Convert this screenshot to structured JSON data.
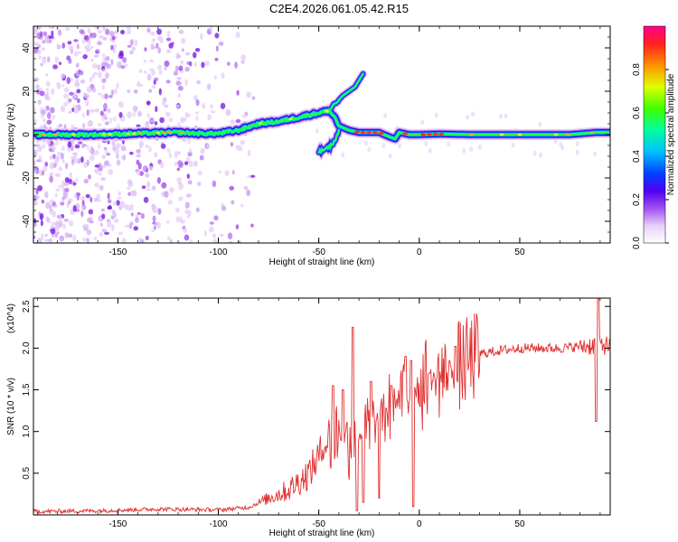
{
  "title": "C2E4.2026.061.05.42.R15",
  "chart_data": [
    {
      "type": "heatmap",
      "xlabel": "Height of straight line (km)",
      "ylabel": "Frequency (Hz)",
      "xlim": [
        -192,
        95
      ],
      "ylim": [
        -50,
        50
      ],
      "xticks": [
        -150,
        -100,
        -50,
        0,
        50
      ],
      "yticks": [
        -40,
        -20,
        0,
        20,
        40
      ],
      "colorbar": {
        "label": "Normalized spectral amplitude",
        "range": [
          0,
          1
        ],
        "ticks": [
          0.0,
          0.2,
          0.4,
          0.6,
          0.8
        ]
      },
      "ridge": [
        [
          -192,
          0
        ],
        [
          -180,
          0
        ],
        [
          -160,
          0
        ],
        [
          -140,
          0.5
        ],
        [
          -120,
          1
        ],
        [
          -110,
          0.5
        ],
        [
          -100,
          0.5
        ],
        [
          -90,
          2
        ],
        [
          -80,
          5
        ],
        [
          -70,
          6
        ],
        [
          -60,
          8
        ],
        [
          -50,
          10
        ],
        [
          -45,
          11
        ],
        [
          -42,
          8
        ],
        [
          -40,
          4
        ],
        [
          -35,
          2
        ],
        [
          -30,
          1
        ],
        [
          -20,
          1
        ],
        [
          -15,
          -1
        ],
        [
          -12,
          -2
        ],
        [
          -10,
          1
        ],
        [
          -5,
          0
        ],
        [
          0,
          0
        ],
        [
          10,
          0.3
        ],
        [
          25,
          0
        ],
        [
          50,
          0
        ],
        [
          75,
          0
        ],
        [
          88,
          1
        ],
        [
          95,
          1
        ]
      ],
      "branches": [
        [
          [
            -45,
            11
          ],
          [
            -38,
            18
          ],
          [
            -32,
            22
          ],
          [
            -28,
            28
          ]
        ],
        [
          [
            -50,
            -8
          ],
          [
            -45,
            -6
          ],
          [
            -42,
            -3
          ],
          [
            -40,
            2
          ]
        ]
      ]
    },
    {
      "type": "line",
      "xlabel": "Height of straight line (km)",
      "ylabel": "SNR (10 * v/v)",
      "y_multiplier": "(x10^4)",
      "xlim": [
        -192,
        95
      ],
      "ylim": [
        0,
        2.6
      ],
      "xticks": [
        -150,
        -100,
        -50,
        0,
        50
      ],
      "yticks": [
        0.5,
        1.0,
        1.5,
        2.0,
        2.5
      ],
      "line_color": "#e03030",
      "envelope": [
        [
          -192,
          0.04
        ],
        [
          -160,
          0.05
        ],
        [
          -130,
          0.07
        ],
        [
          -100,
          0.06
        ],
        [
          -85,
          0.09
        ],
        [
          -75,
          0.2
        ],
        [
          -65,
          0.3
        ],
        [
          -55,
          0.5
        ],
        [
          -50,
          0.7
        ],
        [
          -45,
          0.9
        ],
        [
          -40,
          1.0
        ],
        [
          -35,
          0.9
        ],
        [
          -30,
          0.95
        ],
        [
          -25,
          1.0
        ],
        [
          -20,
          1.15
        ],
        [
          -15,
          1.3
        ],
        [
          -10,
          1.4
        ],
        [
          -5,
          1.45
        ],
        [
          0,
          1.55
        ],
        [
          5,
          1.6
        ],
        [
          10,
          1.65
        ],
        [
          15,
          1.7
        ],
        [
          20,
          1.78
        ],
        [
          25,
          1.85
        ],
        [
          30,
          1.93
        ],
        [
          40,
          1.97
        ],
        [
          50,
          2.0
        ],
        [
          60,
          2.0
        ],
        [
          70,
          2.0
        ],
        [
          80,
          2.02
        ],
        [
          85,
          2.03
        ],
        [
          90,
          2.05
        ],
        [
          95,
          2.02
        ]
      ],
      "peaks": [
        [
          -43,
          1.55
        ],
        [
          -38,
          1.5
        ],
        [
          -33,
          2.25
        ],
        [
          -31,
          1.8
        ],
        [
          -24,
          1.6
        ],
        [
          -14,
          1.55
        ],
        [
          -7,
          1.9
        ],
        [
          -4,
          1.85
        ],
        [
          5,
          1.7
        ],
        [
          15,
          1.85
        ],
        [
          18,
          2.02
        ],
        [
          89,
          2.6
        ]
      ],
      "dips": [
        [
          -31,
          0.05
        ],
        [
          -28,
          0.15
        ],
        [
          -20,
          0.2
        ],
        [
          -3,
          0.1
        ],
        [
          88,
          1.12
        ]
      ]
    }
  ]
}
